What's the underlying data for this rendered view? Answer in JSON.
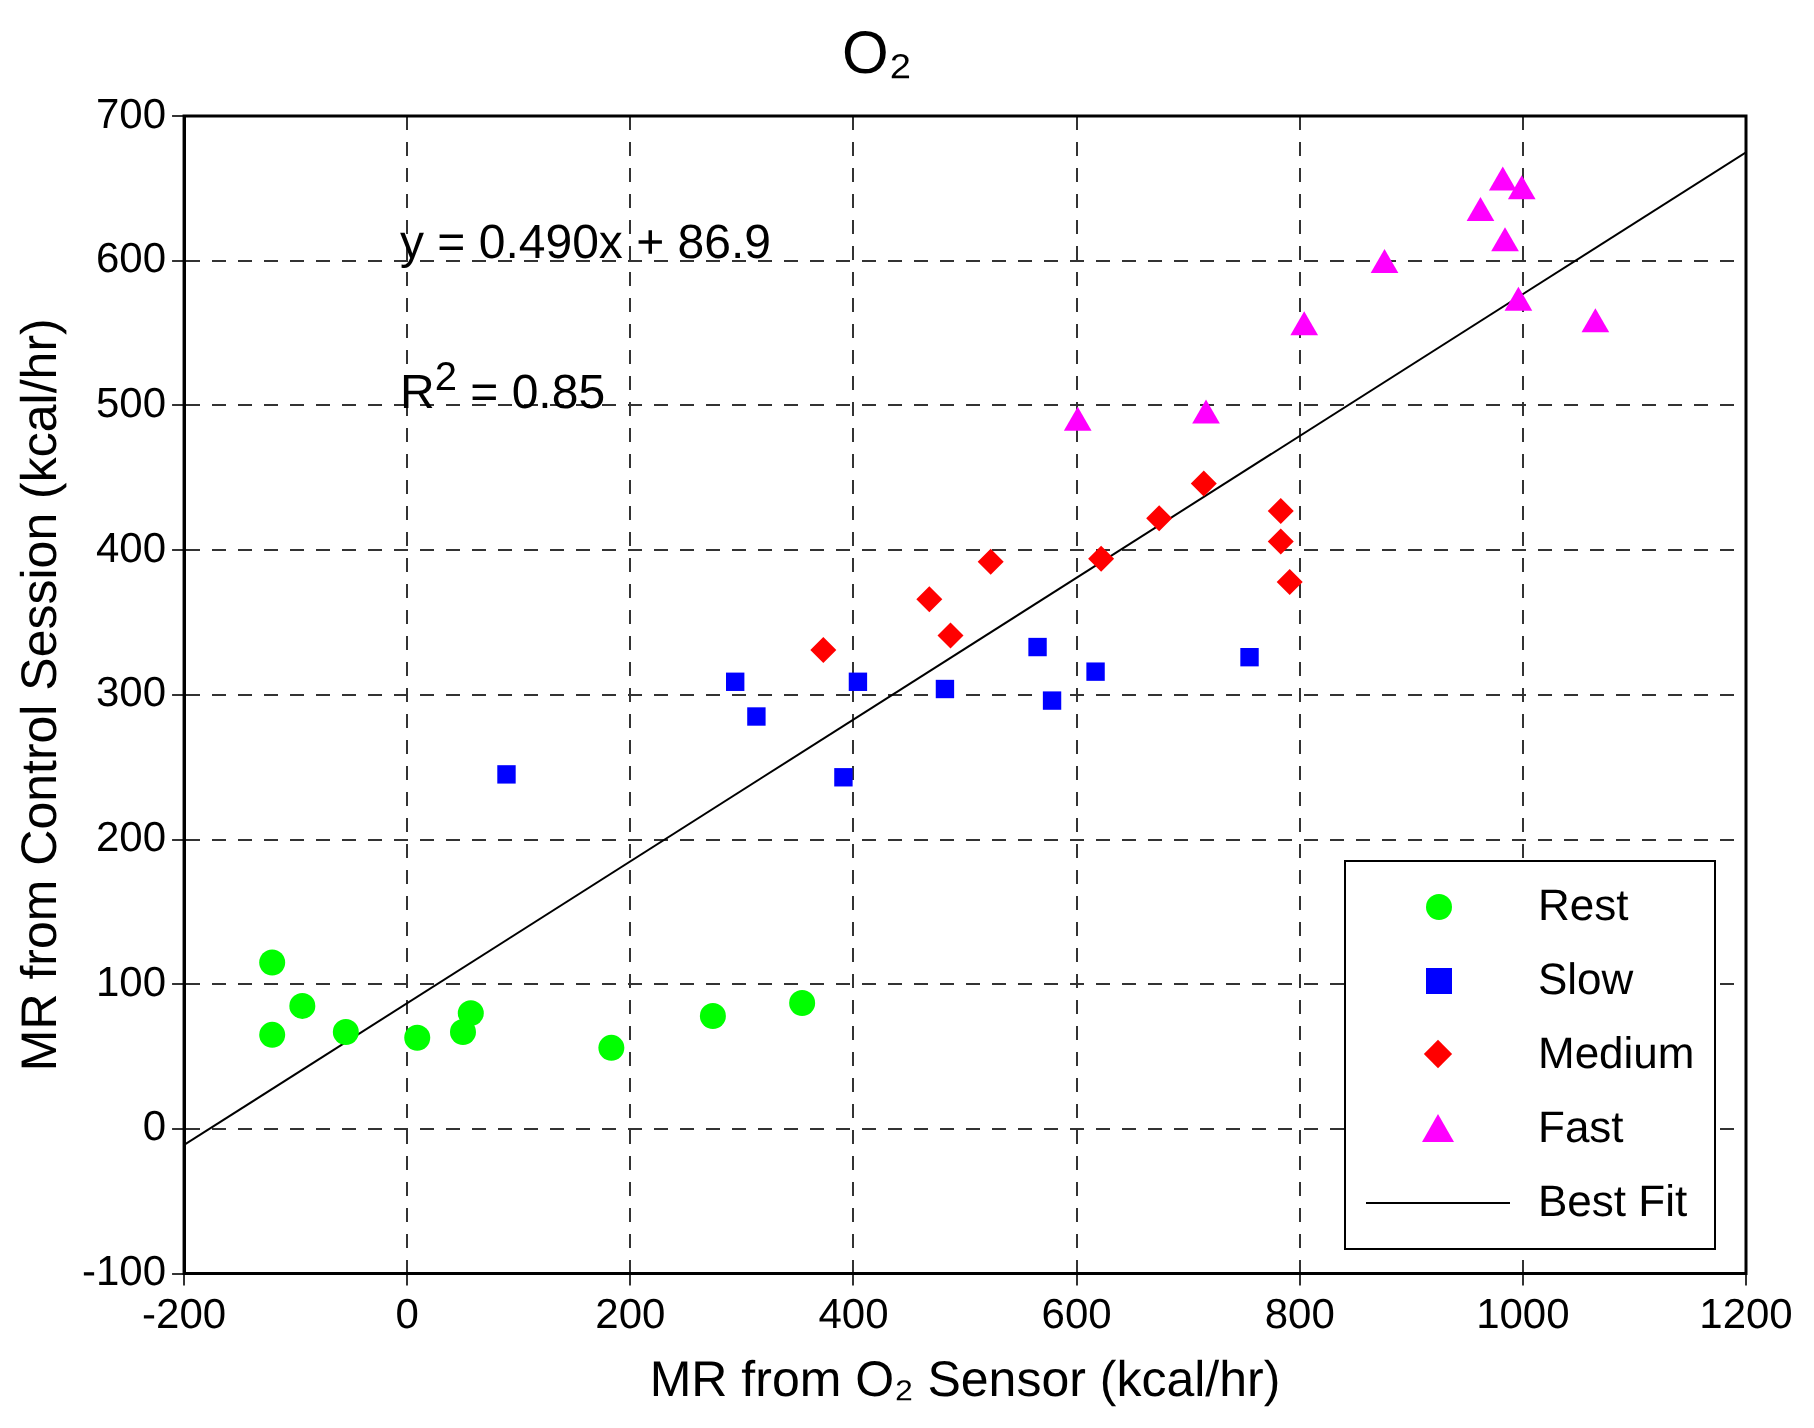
{
  "chart_data": {
    "type": "scatter",
    "title": "O₂",
    "xlabel": "MR from O₂ Sensor (kcal/hr)",
    "ylabel": "MR from Control Session (kcal/hr)",
    "annotations": [
      "y = 0.490x + 86.9",
      "R$^{2}$ = 0.85"
    ],
    "xlim": [
      -200,
      1200
    ],
    "xticks": [
      -200,
      0,
      200,
      400,
      600,
      800,
      1000,
      1200
    ],
    "ylim": [
      -100,
      700
    ],
    "yticks": [
      -100,
      0,
      100,
      200,
      300,
      400,
      500,
      600,
      700
    ],
    "grid": true,
    "legend": "bottom right",
    "series": [
      {
        "name": "Rest",
        "color": "#00ff00",
        "marker": "circle",
        "x": [
          -121,
          -121,
          -94,
          -55,
          9,
          50,
          57,
          183,
          274,
          354
        ],
        "values": [
          115,
          65,
          85,
          67,
          63,
          67,
          80,
          56,
          78,
          87
        ]
      },
      {
        "name": "Slow",
        "color": "#0000ff",
        "marker": "square",
        "x": [
          89,
          294,
          313,
          391,
          404,
          482,
          565,
          578,
          617,
          755
        ],
        "values": [
          245,
          309,
          285,
          243,
          309,
          304,
          333,
          296,
          316,
          326
        ]
      },
      {
        "name": "Medium",
        "color": "#ff0000",
        "marker": "diamond",
        "x": [
          373,
          468,
          487,
          523,
          622,
          674,
          714,
          783,
          783,
          791
        ],
        "values": [
          331,
          366,
          341,
          392,
          394,
          422,
          446,
          427,
          406,
          378
        ]
      },
      {
        "name": "Fast",
        "color": "#ff00ff",
        "marker": "triangle",
        "x": [
          601,
          716,
          804,
          876,
          962,
          982,
          999,
          984,
          996,
          1065
        ],
        "values": [
          488,
          493,
          554,
          597,
          633,
          654,
          648,
          612,
          571,
          556
        ]
      },
      {
        "name": "Best Fit",
        "type": "line",
        "color": "#000000",
        "marker": "none",
        "line_style": "solid",
        "x": [
          -200,
          1200
        ],
        "values": [
          -11.1,
          674.9
        ]
      }
    ]
  }
}
